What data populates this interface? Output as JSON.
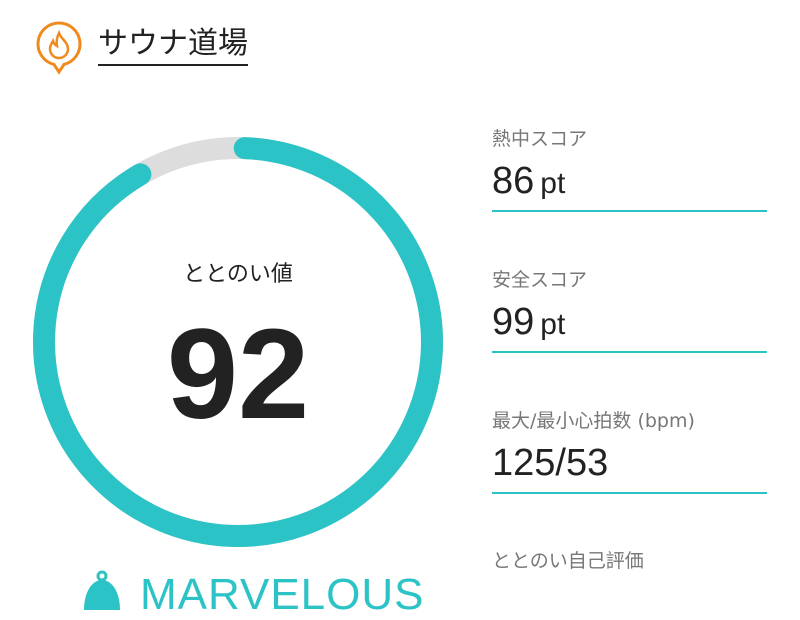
{
  "header": {
    "title": "サウナ道場",
    "logo_icon": "flame-pin-icon",
    "logo_color": "#f08a1c"
  },
  "gauge": {
    "label": "ととのい値",
    "value": "92",
    "percent": 92,
    "color": "#2cc3c6",
    "track_color": "#dddddd"
  },
  "metrics": [
    {
      "label": "熱中スコア",
      "value": "86",
      "unit": "pt"
    },
    {
      "label": "安全スコア",
      "value": "99",
      "unit": "pt"
    },
    {
      "label": "最大/最小心拍数 (bpm)",
      "value": "125/53",
      "unit": ""
    }
  ],
  "self_eval": {
    "label": "ととのい自己評価",
    "rating": "MARVELOUS",
    "icon": "bell-icon"
  }
}
